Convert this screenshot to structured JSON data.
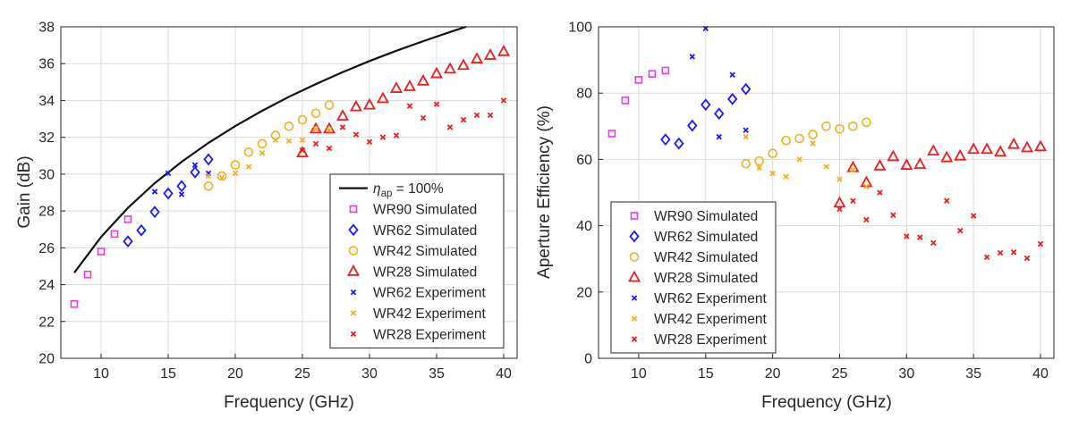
{
  "chart_data": [
    {
      "type": "scatter",
      "name": "gain",
      "xlabel": "Frequency (GHz)",
      "ylabel": "Gain (dB)",
      "xlim": [
        7,
        41
      ],
      "ylim": [
        20,
        38
      ],
      "xticks": [
        10,
        15,
        20,
        25,
        30,
        35,
        40
      ],
      "yticks": [
        20,
        22,
        24,
        26,
        28,
        30,
        32,
        34,
        36,
        38
      ],
      "grid": true,
      "legend_position": "bottom-right",
      "legend": {
        "ideal_prefix": "η",
        "ideal_subscript": "ap",
        "ideal_suffix": " = 100%"
      },
      "series": [
        {
          "name": "WR90 Simulated",
          "marker": "square",
          "color": "#e83ae8",
          "x": [
            8,
            9,
            10,
            11,
            12
          ],
          "y": [
            22.95,
            24.55,
            25.8,
            26.75,
            27.55
          ]
        },
        {
          "name": "WR62 Simulated",
          "marker": "diamond",
          "color": "#1a1aff",
          "x": [
            12,
            13,
            14,
            15,
            16,
            17,
            18
          ],
          "y": [
            26.35,
            26.95,
            27.95,
            28.95,
            29.35,
            30.1,
            30.8
          ]
        },
        {
          "name": "WR42 Simulated",
          "marker": "circle",
          "color": "#f0b020",
          "x": [
            18,
            19,
            20,
            21,
            22,
            23,
            24,
            25,
            26,
            27
          ],
          "y": [
            29.35,
            29.9,
            30.5,
            31.2,
            31.65,
            32.1,
            32.6,
            32.95,
            33.3,
            33.75
          ]
        },
        {
          "name": "WR28 Simulated",
          "marker": "triangle",
          "color": "#ee1c1c",
          "x": [
            25,
            26,
            27,
            28,
            29,
            30,
            31,
            32,
            33,
            34,
            35,
            36,
            37,
            38,
            39,
            40
          ],
          "y": [
            31.15,
            32.45,
            32.45,
            33.15,
            33.65,
            33.75,
            34.1,
            34.65,
            34.75,
            35.05,
            35.45,
            35.7,
            35.9,
            36.25,
            36.45,
            36.65
          ]
        },
        {
          "name": "WR62 Experiment",
          "marker": "x",
          "color": "#1a1aff",
          "x": [
            14,
            15,
            16,
            17,
            18
          ],
          "y": [
            29.05,
            30.05,
            28.9,
            30.5,
            30.05
          ]
        },
        {
          "name": "WR42 Experiment",
          "marker": "x",
          "color": "#f0b020",
          "x": [
            18,
            19,
            20,
            21,
            22,
            23,
            24,
            25,
            26,
            27
          ],
          "y": [
            29.9,
            29.8,
            30.05,
            30.4,
            31.15,
            31.85,
            31.8,
            31.85,
            32.45,
            32.4
          ]
        },
        {
          "name": "WR28 Experiment",
          "marker": "x",
          "color": "#ee1c1c",
          "x": [
            25,
            26,
            27,
            28,
            29,
            30,
            31,
            32,
            33,
            34,
            35,
            36,
            37,
            38,
            39,
            40
          ],
          "y": [
            31.3,
            31.65,
            31.4,
            32.55,
            32.15,
            31.75,
            32.0,
            32.1,
            33.7,
            33.05,
            33.8,
            32.55,
            32.95,
            33.2,
            33.2,
            34.0
          ]
        }
      ],
      "ideal_curve": {
        "color": "#111111",
        "x": [
          8,
          10,
          12,
          14,
          16,
          18,
          20,
          22,
          24,
          26,
          28,
          30,
          32,
          34,
          36,
          37.2
        ],
        "y": [
          24.65,
          26.59,
          28.17,
          29.51,
          30.67,
          31.7,
          32.61,
          33.44,
          34.2,
          34.89,
          35.54,
          36.14,
          36.7,
          37.22,
          37.72,
          38.0
        ]
      }
    },
    {
      "type": "scatter",
      "name": "efficiency",
      "xlabel": "Frequency (GHz)",
      "ylabel": "Aperture Efficiency (%)",
      "xlim": [
        7,
        41
      ],
      "ylim": [
        0,
        100
      ],
      "xticks": [
        10,
        15,
        20,
        25,
        30,
        35,
        40
      ],
      "yticks": [
        0,
        20,
        40,
        60,
        80,
        100
      ],
      "grid": true,
      "legend_position": "bottom-left",
      "series": [
        {
          "name": "WR90 Simulated",
          "marker": "square",
          "color": "#e83ae8",
          "x": [
            8,
            9,
            10,
            11,
            12
          ],
          "y": [
            67.8,
            77.8,
            84,
            85.8,
            86.8
          ]
        },
        {
          "name": "WR62 Simulated",
          "marker": "diamond",
          "color": "#1a1aff",
          "x": [
            12,
            13,
            14,
            15,
            16,
            17,
            18
          ],
          "y": [
            66,
            64.8,
            70.2,
            76.5,
            73.8,
            78.2,
            81.2
          ]
        },
        {
          "name": "WR42 Simulated",
          "marker": "circle",
          "color": "#f0b020",
          "x": [
            18,
            19,
            20,
            21,
            22,
            23,
            24,
            25,
            26,
            27
          ],
          "y": [
            58.7,
            59.5,
            61.8,
            65.7,
            66.3,
            67.5,
            70,
            69.2,
            70,
            71.2
          ]
        },
        {
          "name": "WR28 Simulated",
          "marker": "triangle",
          "color": "#ee1c1c",
          "x": [
            25,
            26,
            27,
            28,
            29,
            30,
            31,
            32,
            33,
            34,
            35,
            36,
            37,
            38,
            39,
            40
          ],
          "y": [
            46.8,
            57.5,
            53,
            58,
            60.8,
            58.2,
            58.5,
            62.5,
            60.5,
            61,
            63,
            63,
            62.2,
            64.5,
            63.5,
            63.8
          ]
        },
        {
          "name": "WR62 Experiment",
          "marker": "x",
          "color": "#1a1aff",
          "x": [
            14,
            15,
            16,
            17,
            18
          ],
          "y": [
            91,
            99.5,
            66.8,
            85.5,
            68.8
          ]
        },
        {
          "name": "WR42 Experiment",
          "marker": "x",
          "color": "#f0b020",
          "x": [
            18,
            19,
            20,
            21,
            22,
            23,
            24,
            25,
            26,
            27
          ],
          "y": [
            66.8,
            57.5,
            55.8,
            54.8,
            60,
            64.8,
            57.8,
            54,
            56.8,
            51.8
          ]
        },
        {
          "name": "WR28 Experiment",
          "marker": "x",
          "color": "#ee1c1c",
          "x": [
            25,
            26,
            27,
            28,
            29,
            30,
            31,
            32,
            33,
            34,
            35,
            36,
            37,
            38,
            39,
            40
          ],
          "y": [
            45,
            47.5,
            41.8,
            50,
            43.2,
            36.8,
            36.5,
            34.8,
            47.5,
            38.5,
            43,
            30.5,
            31.8,
            32,
            30.2,
            34.5
          ]
        }
      ]
    }
  ]
}
